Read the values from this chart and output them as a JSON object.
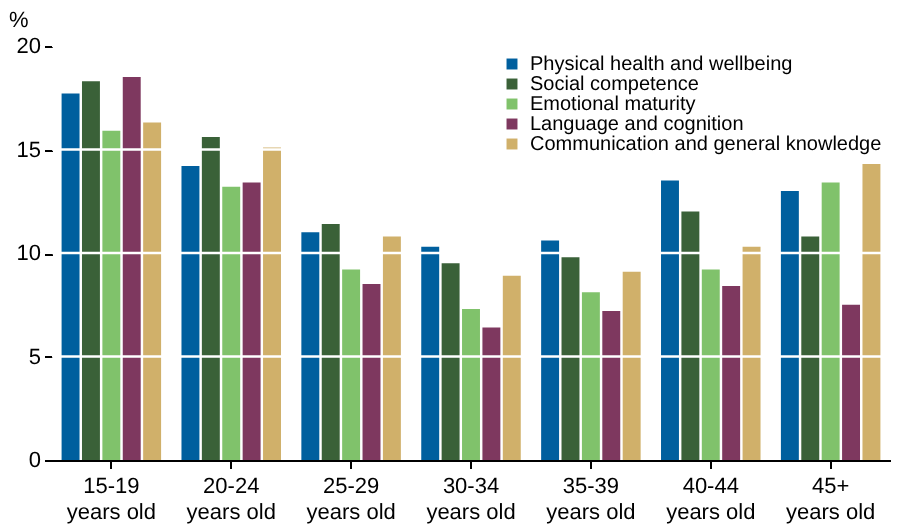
{
  "chart_data": {
    "type": "bar",
    "ylabel": "%",
    "categories": [
      "15-19 years old",
      "20-24 years old",
      "25-29 years old",
      "30-34 years old",
      "35-39 years old",
      "40-44 years old",
      "45+ years old"
    ],
    "series": [
      {
        "name": "Physical health and wellbeing",
        "color": "#005f9e",
        "values": [
          17.7,
          14.2,
          11.0,
          10.3,
          10.6,
          13.5,
          13.0
        ]
      },
      {
        "name": "Social competence",
        "color": "#3a6138",
        "values": [
          18.3,
          15.6,
          11.4,
          9.5,
          9.8,
          12.0,
          10.8
        ]
      },
      {
        "name": "Emotional maturity",
        "color": "#80c26b",
        "values": [
          15.9,
          13.2,
          9.2,
          7.3,
          8.1,
          9.2,
          13.4
        ]
      },
      {
        "name": "Language and cognition",
        "color": "#7e385f",
        "values": [
          18.5,
          13.4,
          8.5,
          6.4,
          7.2,
          8.4,
          7.5
        ]
      },
      {
        "name": "Communication and general knowledge",
        "color": "#d0b06a",
        "values": [
          16.3,
          15.1,
          10.8,
          8.9,
          9.1,
          10.3,
          14.3
        ]
      }
    ],
    "ylim": [
      0,
      20
    ],
    "yticks": [
      0,
      5,
      10,
      15,
      20
    ],
    "grid": "y",
    "legend": "top right"
  }
}
